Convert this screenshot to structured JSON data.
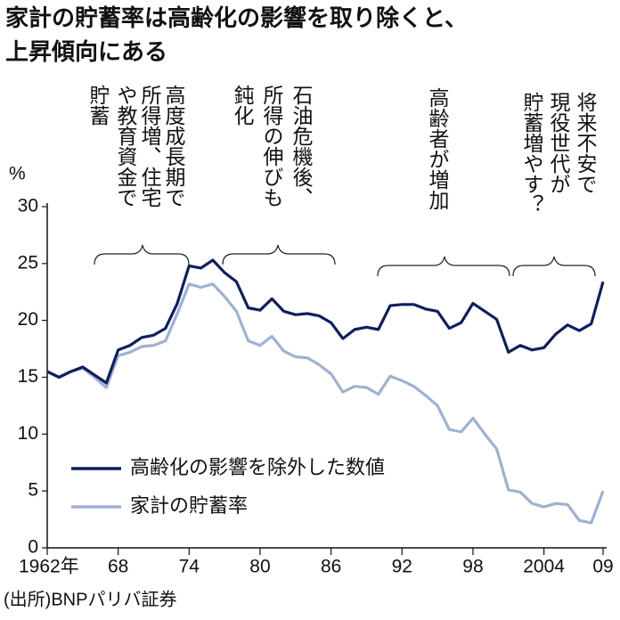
{
  "chart_data": {
    "type": "line",
    "title": [
      "家計の貯蓄率は高齢化の影響を取り除くと、",
      "上昇傾向にある"
    ],
    "y_unit": "%",
    "source": "(出所)BNPパリバ証券",
    "x": [
      1962,
      1963,
      1964,
      1965,
      1966,
      1967,
      1968,
      1969,
      1970,
      1971,
      1972,
      1973,
      1974,
      1975,
      1976,
      1977,
      1978,
      1979,
      1980,
      1981,
      1982,
      1983,
      1984,
      1985,
      1986,
      1987,
      1988,
      1989,
      1990,
      1991,
      1992,
      1993,
      1994,
      1995,
      1996,
      1997,
      1998,
      1999,
      2000,
      2001,
      2002,
      2003,
      2004,
      2005,
      2006,
      2007,
      2008,
      2009
    ],
    "series": [
      {
        "name": "高齢化の影響を除外した数値",
        "color": "#0f1f5e",
        "values": [
          15.5,
          15.0,
          15.5,
          15.9,
          15.2,
          14.5,
          17.4,
          17.8,
          18.5,
          18.7,
          19.3,
          21.5,
          24.8,
          24.6,
          25.3,
          24.2,
          23.4,
          21.1,
          20.9,
          21.9,
          20.8,
          20.5,
          20.6,
          20.4,
          19.8,
          18.4,
          19.2,
          19.4,
          19.2,
          21.3,
          21.4,
          21.4,
          21.0,
          20.8,
          19.3,
          19.8,
          21.5,
          20.8,
          20.1,
          17.2,
          17.8,
          17.4,
          17.6,
          18.8,
          19.6,
          19.1,
          19.7,
          23.4
        ]
      },
      {
        "name": "家計の貯蓄率",
        "color": "#9db2d0",
        "values": [
          15.5,
          15.0,
          15.5,
          15.8,
          15.0,
          14.1,
          16.9,
          17.2,
          17.7,
          17.8,
          18.2,
          20.6,
          23.2,
          22.9,
          23.2,
          22.1,
          20.8,
          18.2,
          17.8,
          18.6,
          17.3,
          16.8,
          16.7,
          16.1,
          15.3,
          13.7,
          14.2,
          14.1,
          13.5,
          15.1,
          14.7,
          14.2,
          13.4,
          12.5,
          10.4,
          10.2,
          11.4,
          10.0,
          8.7,
          5.1,
          4.9,
          3.9,
          3.6,
          3.9,
          3.8,
          2.4,
          2.2,
          5.0
        ]
      }
    ],
    "xlim": [
      1962,
      2009
    ],
    "xticks": [
      {
        "value": 1962,
        "label": "1962年"
      },
      {
        "value": 1968,
        "label": "68"
      },
      {
        "value": 1974,
        "label": "74"
      },
      {
        "value": 1980,
        "label": "80"
      },
      {
        "value": 1986,
        "label": "86"
      },
      {
        "value": 1992,
        "label": "92"
      },
      {
        "value": 1998,
        "label": "98"
      },
      2004,
      {
        "value": 2009,
        "label": "09"
      }
    ],
    "ylim": [
      0,
      30
    ],
    "yticks": [
      0,
      5,
      10,
      15,
      20,
      25,
      30
    ],
    "annotations": [
      [
        "高度成長期で",
        "所得増、住宅",
        "や教育資金で",
        "貯蓄"
      ],
      [
        "石油危機後、",
        "所得の伸びも",
        "鈍化"
      ],
      [
        "高齢者が増加"
      ],
      [
        "将来不安で",
        "現役世代が",
        "貯蓄増やす？"
      ]
    ]
  }
}
